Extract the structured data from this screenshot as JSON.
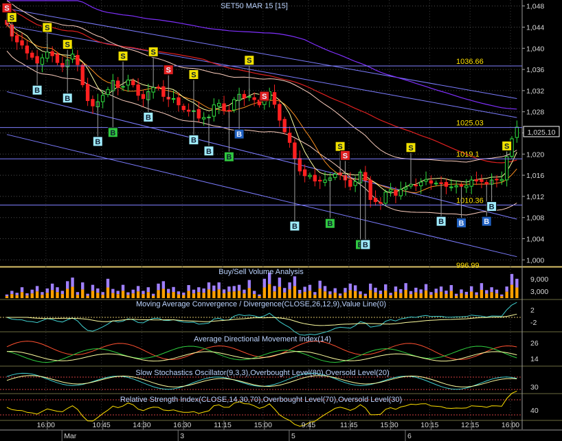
{
  "chart_data": {
    "type": "line",
    "title": "SET50 MAR 15  [15]",
    "price_axis": {
      "ticks": [
        "1,048",
        "1,044",
        "1,040",
        "1,036",
        "1,032",
        "1,028",
        "1,024",
        "1,020",
        "1,016",
        "1,012",
        "1,008",
        "1,004",
        "1,000"
      ],
      "ylim": [
        999,
        1049
      ],
      "last_price": 1025.1,
      "last_price_label": "1,025.10"
    },
    "levels": [
      {
        "label": "1036.66",
        "value": 1036.66
      },
      {
        "label": "1025.03",
        "value": 1025.03
      },
      {
        "label": "1019.1",
        "value": 1019.1
      },
      {
        "label": "1010.36",
        "value": 1010.36
      },
      {
        "label": "996.99",
        "value": 996.99
      }
    ],
    "x_time_labels": [
      "16:00",
      "10:45",
      "14:30",
      "16:30",
      "11:15",
      "15:00",
      "9:45",
      "11:45",
      "15:30",
      "10:15",
      "12:15",
      "16:00"
    ],
    "x_date_labels": [
      "Mar",
      "3",
      "5",
      "6"
    ],
    "close": [
      1044.5,
      1042.3,
      1041.2,
      1040.6,
      1039.1,
      1038.3,
      1037.2,
      1038.2,
      1039.3,
      1038.6,
      1037.3,
      1036.5,
      1037.8,
      1038.9,
      1036.9,
      1033.1,
      1030.1,
      1029.1,
      1029.9,
      1031.1,
      1032.2,
      1033.9,
      1032.6,
      1032.8,
      1034.0,
      1033.1,
      1031.1,
      1030.5,
      1031.8,
      1032.6,
      1032.5,
      1030.9,
      1030.4,
      1030.5,
      1029.3,
      1028.4,
      1028.1,
      1028.2,
      1026.8,
      1026.9,
      1027.0,
      1029.3,
      1029.6,
      1028.2,
      1028.1,
      1030.3,
      1031.3,
      1030.6,
      1030.9,
      1030.3,
      1029.3,
      1030.1,
      1031.8,
      1029.4,
      1026.4,
      1024.2,
      1022.2,
      1019.1,
      1016.8,
      1015.9,
      1016.0,
      1014.9,
      1014.9,
      1015.1,
      1015.5,
      1016.2,
      1016.1,
      1015.1,
      1013.9,
      1014.8,
      1016.6,
      1015.0,
      1011.4,
      1011.0,
      1010.7,
      1012.8,
      1013.3,
      1012.2,
      1013.3,
      1013.7,
      1014.3,
      1014.0,
      1014.7,
      1015.2,
      1014.5,
      1014.5,
      1014.4,
      1013.9,
      1013.8,
      1014.0,
      1013.9,
      1014.0,
      1015.1,
      1014.9,
      1014.8,
      1014.3,
      1015.1,
      1015.2,
      1015.2,
      1019.5,
      1022.9,
      1025.1
    ],
    "volume_axis": {
      "ticks": [
        "9,000",
        "3,000"
      ],
      "max": 12500
    },
    "volume": [
      1500,
      3000,
      2200,
      4500,
      2000,
      3500,
      5000,
      2500,
      4000,
      6000,
      4500,
      3000,
      7000,
      8500,
      2500,
      6500,
      1800,
      5500,
      4000,
      2500,
      8000,
      3800,
      3000,
      5500,
      2400,
      3500,
      5000,
      3000,
      4500,
      1800,
      6000,
      7000,
      3800,
      4600,
      2800,
      2300,
      5400,
      3500,
      4500,
      4000,
      6500,
      5200,
      6500,
      3600,
      4800,
      5000,
      5500,
      3500,
      7500,
      3000,
      1500,
      8000,
      10500,
      5000,
      8500,
      4200,
      6500,
      9000,
      3400,
      4700,
      5500,
      2500,
      7200,
      5000,
      2800,
      4100,
      1900,
      4200,
      6000,
      5300,
      2800,
      1800,
      6000,
      4300,
      3100,
      5700,
      2200,
      4800,
      3700,
      6200,
      2900,
      4300,
      3600,
      5800,
      2500,
      3900,
      4800,
      3100,
      5400,
      1800,
      3600,
      2600,
      4900,
      2400,
      6200,
      3300,
      4500,
      3500,
      1500,
      4800,
      10000,
      8000
    ],
    "indicators": [
      {
        "title": "Buy/Sell Volume Analysis",
        "axis_ticks": [
          "9,000",
          "3,000"
        ]
      },
      {
        "title": "Moving Average Convergence / Divergence(CLOSE,26,12,9),Value Line(0)",
        "axis_ticks": [
          "2",
          "-2"
        ]
      },
      {
        "title": "Average Directional Movement Index(14)",
        "axis_ticks": [
          "26",
          "14"
        ]
      },
      {
        "title": "Slow Stochastics Oscillator(9,3,3),Overbought Level(80),Oversold Level(20)",
        "axis_ticks": [
          "30"
        ]
      },
      {
        "title": "Relative Strength Index(CLOSE,14,30,70),Overbought Level(70),Oversold Level(30)",
        "axis_ticks": [
          "40"
        ]
      }
    ],
    "signals": [
      {
        "label": "S",
        "i": 0,
        "v": 1046.6,
        "color": "#e02020",
        "pos": "above"
      },
      {
        "label": "S",
        "i": 1,
        "v": 1044.8,
        "color": "#f0e000",
        "pos": "above"
      },
      {
        "label": "S",
        "i": 8,
        "v": 1042.9,
        "color": "#f0e000",
        "pos": "above"
      },
      {
        "label": "S",
        "i": 12,
        "v": 1039.7,
        "color": "#f0e000",
        "pos": "above"
      },
      {
        "label": "S",
        "i": 23,
        "v": 1037.5,
        "color": "#f0e000",
        "pos": "above"
      },
      {
        "label": "S",
        "i": 29,
        "v": 1038.3,
        "color": "#f0e000",
        "pos": "above"
      },
      {
        "label": "S",
        "i": 32,
        "v": 1034.9,
        "color": "#e02020",
        "pos": "above"
      },
      {
        "label": "S",
        "i": 37,
        "v": 1034.0,
        "color": "#f0e000",
        "pos": "above"
      },
      {
        "label": "S",
        "i": 48,
        "v": 1036.7,
        "color": "#f0e000",
        "pos": "above"
      },
      {
        "label": "S",
        "i": 51,
        "v": 1029.9,
        "color": "#e02020",
        "pos": "above"
      },
      {
        "label": "S",
        "i": 66,
        "v": 1020.4,
        "color": "#f0e000",
        "pos": "above"
      },
      {
        "label": "S",
        "i": 67,
        "v": 1018.7,
        "color": "#e02020",
        "pos": "above"
      },
      {
        "label": "S",
        "i": 80,
        "v": 1020.2,
        "color": "#f0e000",
        "pos": "above"
      },
      {
        "label": "S",
        "i": 99,
        "v": 1020.5,
        "color": "#f0e000",
        "pos": "above"
      },
      {
        "label": "B",
        "i": 6,
        "v": 1033.0,
        "color": "#a0ecff",
        "pos": "below"
      },
      {
        "label": "B",
        "i": 12,
        "v": 1031.5,
        "color": "#a0ecff",
        "pos": "below"
      },
      {
        "label": "B",
        "i": 18,
        "v": 1023.3,
        "color": "#a0ecff",
        "pos": "below"
      },
      {
        "label": "B",
        "i": 21,
        "v": 1025.0,
        "color": "#30c840",
        "pos": "below"
      },
      {
        "label": "B",
        "i": 28,
        "v": 1027.9,
        "color": "#a0ecff",
        "pos": "below"
      },
      {
        "label": "B",
        "i": 37,
        "v": 1023.6,
        "color": "#a0ecff",
        "pos": "below"
      },
      {
        "label": "B",
        "i": 40,
        "v": 1021.5,
        "color": "#a0ecff",
        "pos": "below"
      },
      {
        "label": "B",
        "i": 44,
        "v": 1020.4,
        "color": "#30c840",
        "pos": "below"
      },
      {
        "label": "B",
        "i": 46,
        "v": 1024.7,
        "color": "#2060c0",
        "pos": "below"
      },
      {
        "label": "B",
        "i": 57,
        "v": 1007.3,
        "color": "#a0ecff",
        "pos": "below"
      },
      {
        "label": "B",
        "i": 64,
        "v": 1007.8,
        "color": "#30c840",
        "pos": "below"
      },
      {
        "label": "B",
        "i": 70,
        "v": 1003.8,
        "color": "#30c840",
        "pos": "below"
      },
      {
        "label": "B",
        "i": 71,
        "v": 1003.8,
        "color": "#a0ecff",
        "pos": "below"
      },
      {
        "label": "B",
        "i": 86,
        "v": 1008.2,
        "color": "#a0ecff",
        "pos": "below"
      },
      {
        "label": "B",
        "i": 90,
        "v": 1007.9,
        "color": "#2060c0",
        "pos": "below"
      },
      {
        "label": "B",
        "i": 95,
        "v": 1008.2,
        "color": "#2060c0",
        "pos": "below"
      },
      {
        "label": "B",
        "i": 96,
        "v": 1011.0,
        "color": "#a0ecff",
        "pos": "below"
      }
    ],
    "trend_lines": [
      {
        "from": [
          0,
          1047.5
        ],
        "to": [
          101,
          1030.5
        ]
      },
      {
        "from": [
          0,
          1044.3
        ],
        "to": [
          101,
          1026.9
        ]
      },
      {
        "from": [
          0,
          1031.8
        ],
        "to": [
          101,
          1007.7
        ]
      },
      {
        "from": [
          0,
          1023.7
        ],
        "to": [
          101,
          1000.6
        ]
      }
    ],
    "colors": {
      "up": "#30e040",
      "down": "#ff2020",
      "grid": "#505050",
      "level": "#7f7fff",
      "ma_red": "#e02020",
      "ma_purple": "#8030ff",
      "text": "#cfe0ff",
      "volume_buy": "#ffa000",
      "volume_sell": "#a080ff"
    }
  }
}
